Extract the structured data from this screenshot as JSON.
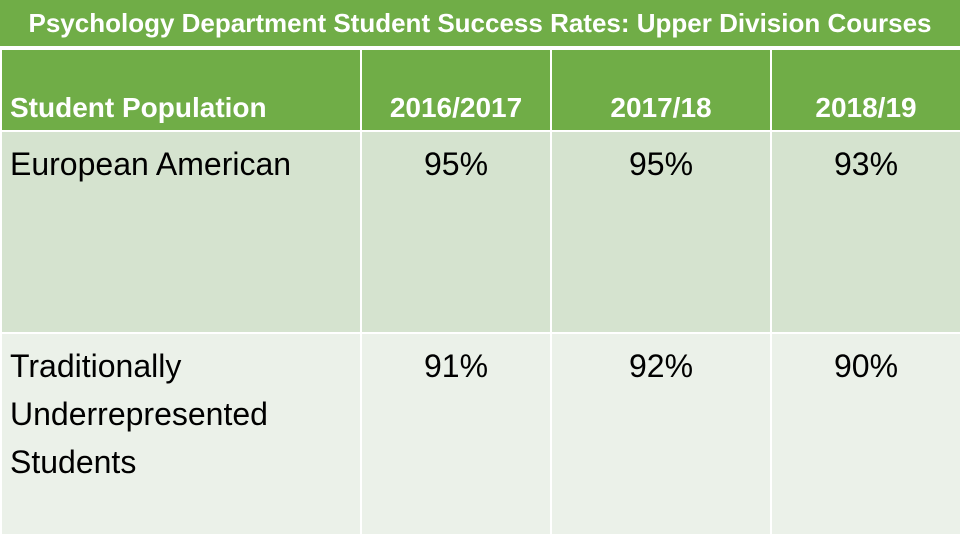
{
  "title": "Psychology Department Student Success Rates: Upper Division Courses",
  "colors": {
    "header_green": "#70ad47",
    "row_dark": "#d5e3cf",
    "row_light": "#ebf1e9",
    "header_text": "#ffffff"
  },
  "chart_data": {
    "type": "table",
    "title": "Psychology Department Student Success Rates: Upper Division Courses",
    "columns": [
      "Student Population",
      "2016/2017",
      "2017/18",
      "2018/19"
    ],
    "rows": [
      {
        "label": [
          "European American"
        ],
        "values": [
          "95%",
          "95%",
          "93%"
        ]
      },
      {
        "label": [
          "Traditionally",
          "Underrepresented",
          "Students"
        ],
        "values": [
          "91%",
          "92%",
          "90%"
        ]
      }
    ]
  }
}
